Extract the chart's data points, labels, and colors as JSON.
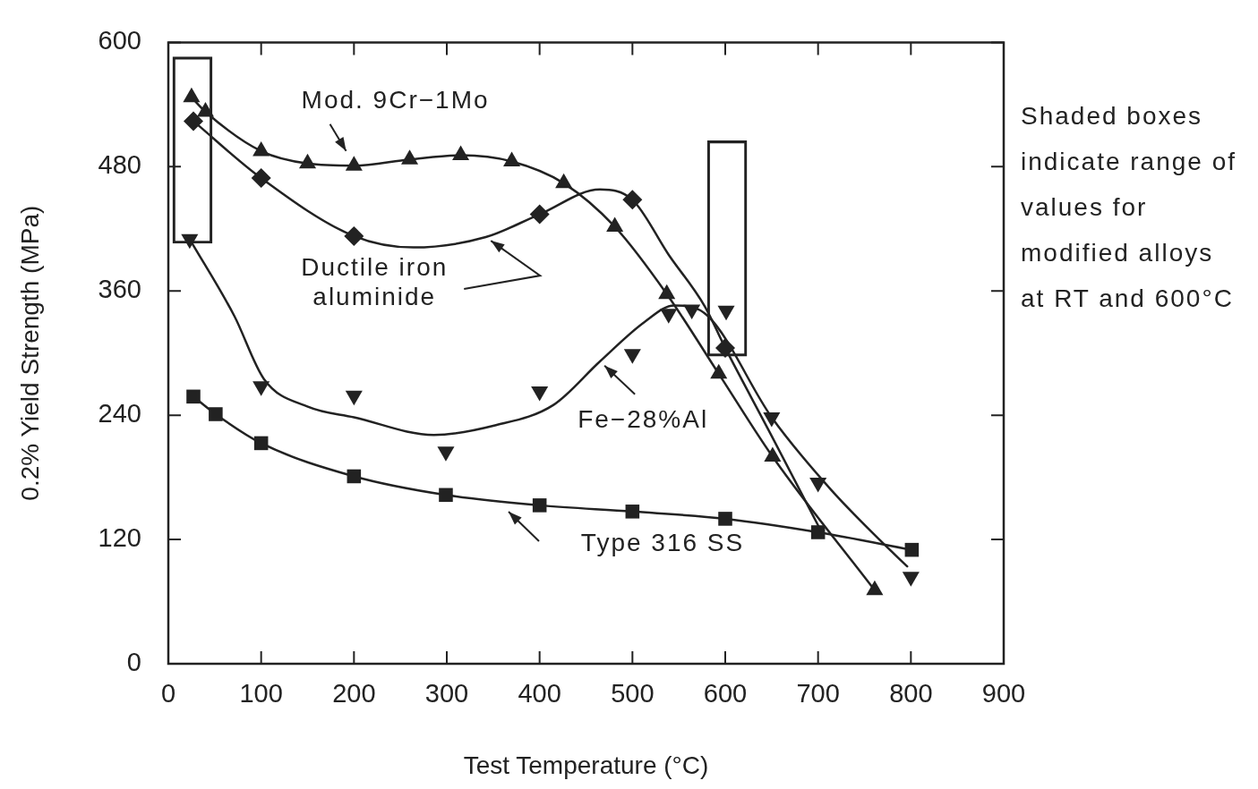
{
  "chart_data": {
    "type": "scatter",
    "xlabel": "Test Temperature (°C)",
    "ylabel": "0.2% Yield Strength (MPa)",
    "xlim": [
      0,
      900
    ],
    "xticks": [
      0,
      100,
      200,
      300,
      400,
      500,
      600,
      700,
      800,
      900
    ],
    "ylim": [
      0,
      600
    ],
    "yticks": [
      0,
      120,
      240,
      360,
      480,
      600
    ],
    "grid": false,
    "legend": false,
    "series": [
      {
        "type": "line",
        "color": "#222222",
        "marker": "triangle",
        "x": [
          25,
          40,
          100,
          150,
          200,
          260,
          315,
          370,
          426,
          481,
          537,
          593,
          651,
          761
        ],
        "values": [
          547,
          533,
          495,
          483,
          481,
          487,
          491,
          485,
          464,
          422,
          357,
          280,
          200,
          71
        ]
      },
      {
        "type": "scatter",
        "color": "#222222",
        "marker": "diamond",
        "x": [
          27,
          100,
          200,
          400,
          500,
          600
        ],
        "values": [
          524,
          469,
          413,
          434,
          448,
          305
        ]
      },
      {
        "type": "line",
        "color": "#222222",
        "marker": "none",
        "x": [
          27,
          100,
          200,
          264,
          342,
          400,
          465,
          500,
          539,
          578,
          600,
          650,
          705
        ],
        "values": [
          524,
          469,
          413,
          402,
          412,
          434,
          458,
          448,
          395,
          345,
          305,
          220,
          125
        ]
      },
      {
        "type": "scatter",
        "color": "#222222",
        "marker": "triangle-down",
        "x": [
          23,
          100,
          200,
          299,
          400,
          500,
          539,
          564,
          601,
          650,
          700,
          800
        ],
        "values": [
          410,
          268,
          259,
          205,
          263,
          299,
          338,
          342,
          341,
          238,
          175,
          84
        ]
      },
      {
        "type": "line",
        "color": "#222222",
        "marker": "none",
        "x": [
          23,
          71,
          103,
          151,
          200,
          286,
          351,
          415,
          465,
          513,
          545,
          581,
          650,
          713,
          767,
          796
        ],
        "values": [
          410,
          336,
          275,
          248,
          238,
          221,
          230,
          250,
          292,
          330,
          346,
          336,
          238,
          169,
          119,
          94
        ]
      },
      {
        "type": "line",
        "color": "#222222",
        "marker": "square",
        "x": [
          27,
          51,
          100,
          200,
          299,
          400,
          500,
          600,
          700,
          801
        ],
        "values": [
          258,
          241,
          213,
          181,
          163,
          153,
          147,
          140,
          127,
          110
        ]
      },
      {
        "type": "bar",
        "color": "#222222",
        "x": [
          26,
          602
        ],
        "base": [
          406,
          297
        ],
        "values": [
          180,
          208
        ]
      }
    ],
    "annotations": [
      {
        "text": "Mod. 9Cr−1Mo",
        "x": 195,
        "y": 490
      },
      {
        "text": "Ductile iron aluminide",
        "x": 342,
        "y": 412
      },
      {
        "text": "Fe−28%Al",
        "x": 465,
        "y": 292
      },
      "Type 316 SS",
      "Shaded boxes indicate range of values for modified alloys at RT and 600°C"
    ]
  }
}
